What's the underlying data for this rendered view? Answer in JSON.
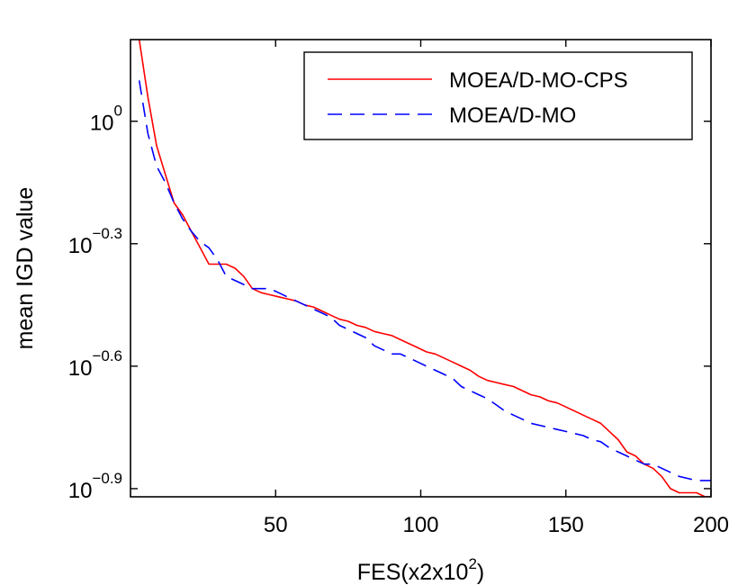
{
  "chart_data": {
    "type": "line",
    "title": "",
    "xlabel": "FES(x2x10^2)",
    "xlabel_parts": {
      "base": "FES(x2x10",
      "exponent": "2",
      "suffix": ")"
    },
    "ylabel": "mean IGD value",
    "xlim": [
      0,
      200
    ],
    "ylim_log10": [
      -0.92,
      0.2
    ],
    "xticks": [
      50,
      100,
      150,
      200
    ],
    "xtick_labels": [
      "50",
      "100",
      "150",
      "200"
    ],
    "yticks_log10": [
      0,
      -0.3,
      -0.6,
      -0.9
    ],
    "ytick_labels": [
      {
        "base": "10",
        "exponent": "0"
      },
      {
        "base": "10",
        "exponent": "−0.3"
      },
      {
        "base": "10",
        "exponent": "−0.6"
      },
      {
        "base": "10",
        "exponent": "−0.9"
      }
    ],
    "legend_position": "top-right",
    "series": [
      {
        "name": "MOEA/D-MO-CPS",
        "color": "#ff0000",
        "dash": "solid",
        "x": [
          3,
          6,
          9,
          12,
          15,
          18,
          21,
          24,
          27,
          30,
          33,
          36,
          39,
          42,
          45,
          48,
          51,
          54,
          57,
          60,
          63,
          66,
          69,
          72,
          75,
          78,
          81,
          84,
          87,
          90,
          93,
          96,
          99,
          102,
          105,
          108,
          111,
          114,
          117,
          120,
          123,
          126,
          129,
          132,
          135,
          138,
          141,
          144,
          147,
          150,
          153,
          156,
          159,
          162,
          165,
          168,
          171,
          174,
          177,
          180,
          183,
          186,
          189,
          192,
          195,
          198,
          200
        ],
        "y_log10": [
          0.2,
          0.06,
          -0.06,
          -0.13,
          -0.2,
          -0.23,
          -0.27,
          -0.31,
          -0.35,
          -0.35,
          -0.35,
          -0.36,
          -0.38,
          -0.41,
          -0.42,
          -0.425,
          -0.43,
          -0.435,
          -0.44,
          -0.45,
          -0.455,
          -0.465,
          -0.475,
          -0.485,
          -0.49,
          -0.5,
          -0.505,
          -0.515,
          -0.52,
          -0.525,
          -0.535,
          -0.545,
          -0.555,
          -0.565,
          -0.57,
          -0.58,
          -0.59,
          -0.6,
          -0.61,
          -0.625,
          -0.635,
          -0.64,
          -0.645,
          -0.65,
          -0.66,
          -0.67,
          -0.675,
          -0.685,
          -0.69,
          -0.7,
          -0.71,
          -0.72,
          -0.73,
          -0.74,
          -0.76,
          -0.78,
          -0.81,
          -0.82,
          -0.84,
          -0.85,
          -0.87,
          -0.9,
          -0.91,
          -0.91,
          -0.91,
          -0.92,
          -0.92
        ]
      },
      {
        "name": "MOEA/D-MO",
        "color": "#0000ff",
        "dash": "dashed",
        "x": [
          3,
          6,
          9,
          12,
          15,
          18,
          21,
          24,
          27,
          30,
          33,
          36,
          39,
          42,
          45,
          48,
          51,
          54,
          57,
          60,
          63,
          66,
          69,
          72,
          75,
          78,
          81,
          84,
          87,
          90,
          93,
          96,
          99,
          102,
          105,
          108,
          111,
          114,
          117,
          120,
          123,
          126,
          129,
          132,
          135,
          138,
          141,
          144,
          147,
          150,
          153,
          156,
          159,
          162,
          165,
          168,
          171,
          174,
          177,
          180,
          183,
          186,
          189,
          192,
          195,
          198,
          200
        ],
        "y_log10": [
          0.1,
          -0.03,
          -0.11,
          -0.15,
          -0.2,
          -0.24,
          -0.27,
          -0.295,
          -0.31,
          -0.34,
          -0.38,
          -0.39,
          -0.4,
          -0.41,
          -0.41,
          -0.41,
          -0.42,
          -0.43,
          -0.44,
          -0.45,
          -0.46,
          -0.47,
          -0.48,
          -0.5,
          -0.51,
          -0.52,
          -0.53,
          -0.55,
          -0.56,
          -0.57,
          -0.57,
          -0.58,
          -0.59,
          -0.6,
          -0.61,
          -0.62,
          -0.63,
          -0.65,
          -0.66,
          -0.67,
          -0.68,
          -0.695,
          -0.71,
          -0.72,
          -0.73,
          -0.74,
          -0.745,
          -0.75,
          -0.755,
          -0.76,
          -0.765,
          -0.77,
          -0.78,
          -0.785,
          -0.8,
          -0.81,
          -0.82,
          -0.83,
          -0.84,
          -0.84,
          -0.85,
          -0.86,
          -0.87,
          -0.875,
          -0.88,
          -0.88,
          -0.88
        ]
      }
    ]
  }
}
